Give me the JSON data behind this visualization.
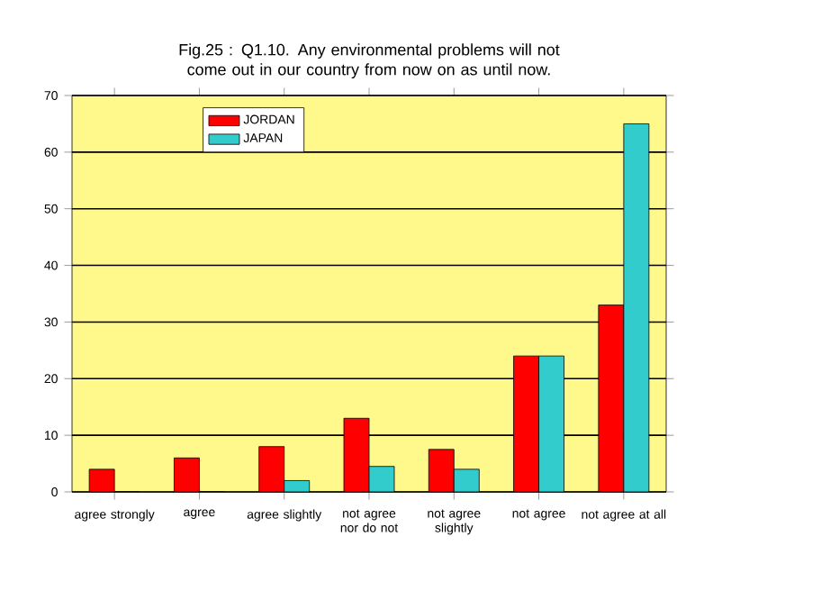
{
  "chart_data": {
    "type": "bar",
    "title": "Fig.25 : Q1.10. Any environmental problems will not come out in our country from now on as until now.",
    "categories": [
      "agree strongly",
      "agree",
      "agree slightly",
      "not agree nor do not",
      "not agree slightly",
      "not agree",
      "not agree at all"
    ],
    "series": [
      {
        "name": "JORDAN",
        "color": "#ff0000",
        "values": [
          4,
          6,
          8,
          13,
          7.5,
          24,
          33
        ]
      },
      {
        "name": "JAPAN",
        "color": "#33cccc",
        "values": [
          0,
          0,
          2,
          4.5,
          4,
          24,
          65
        ]
      }
    ],
    "ylim": [
      0,
      70
    ],
    "yticks": [
      0,
      10,
      20,
      30,
      40,
      50,
      60,
      70
    ],
    "grid": "y",
    "legend": "top left"
  }
}
